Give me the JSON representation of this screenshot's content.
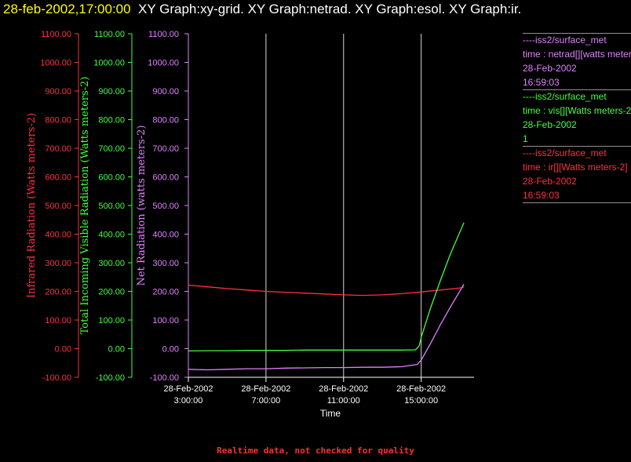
{
  "header": {
    "timestamp": "28-feb-2002,17:00:00",
    "graphs": "XY Graph:xy-grid.  XY Graph:netrad.  XY Graph:esol.  XY Graph:ir."
  },
  "footer_note": "Realtime data, not checked for quality",
  "legend": [
    {
      "source": "----iss2/surface_met",
      "var": "time : netrad[][watts meters-2]",
      "date": "28-Feb-2002",
      "time": "16:59:03",
      "color": "#e080ff"
    },
    {
      "source": "----iss2/surface_met",
      "var": "time : vis[][Watts meters-2]",
      "date": "28-Feb-2002",
      "time": "1",
      "color": "#40ff40"
    },
    {
      "source": "----iss2/surface_met",
      "var": "time : ir[][Watts meters-2]",
      "date": "28-Feb-2002",
      "time": "16:59:03",
      "color": "#ff3040"
    }
  ],
  "chart_data": {
    "type": "line",
    "xlabel": "Time",
    "x_ticks": [
      {
        "date": "28-Feb-2002",
        "time": "3:00:00",
        "hour": 3
      },
      {
        "date": "28-Feb-2002",
        "time": "7:00:00",
        "hour": 7
      },
      {
        "date": "28-Feb-2002",
        "time": "11:00:00",
        "hour": 11
      },
      {
        "date": "28-Feb-2002",
        "time": "15:00:00",
        "hour": 15
      }
    ],
    "xlim_hours": [
      3,
      17.4
    ],
    "ylim": [
      -100,
      1100
    ],
    "y_ticks": [
      "-100.00",
      "0.00",
      "100.00",
      "200.00",
      "300.00",
      "400.00",
      "500.00",
      "600.00",
      "700.00",
      "800.00",
      "900.00",
      "1000.00",
      "1100.00"
    ],
    "vertical_grid_hours": [
      7,
      11,
      15
    ],
    "axes": [
      {
        "label": "Infrared Radiation (Watts meters-2)",
        "color": "#ff3040"
      },
      {
        "label": "Total Incoming Visible Radiation (Watts meters-2)",
        "color": "#40ff40"
      },
      {
        "label": "Net Radiation (watts meters-2)",
        "color": "#e080ff"
      }
    ],
    "series": [
      {
        "name": "ir",
        "color": "#ff3040",
        "points": [
          [
            3,
            222
          ],
          [
            4,
            216
          ],
          [
            5,
            210
          ],
          [
            6,
            205
          ],
          [
            7,
            200
          ],
          [
            8,
            197
          ],
          [
            9,
            194
          ],
          [
            10,
            191
          ],
          [
            11,
            188
          ],
          [
            12,
            186
          ],
          [
            13,
            188
          ],
          [
            14,
            192
          ],
          [
            15,
            198
          ],
          [
            16,
            205
          ],
          [
            17,
            212
          ],
          [
            17.2,
            215
          ]
        ]
      },
      {
        "name": "vis",
        "color": "#40ff40",
        "points": [
          [
            3,
            -8
          ],
          [
            4,
            -7
          ],
          [
            5,
            -7
          ],
          [
            6,
            -6
          ],
          [
            7,
            -6
          ],
          [
            8,
            -6
          ],
          [
            9,
            -5
          ],
          [
            10,
            -5
          ],
          [
            11,
            -5
          ],
          [
            12,
            -5
          ],
          [
            13,
            -5
          ],
          [
            14,
            -5
          ],
          [
            14.7,
            -4
          ],
          [
            14.9,
            10
          ],
          [
            15.0,
            40
          ],
          [
            15.5,
            145
          ],
          [
            16,
            240
          ],
          [
            16.5,
            330
          ],
          [
            17.2,
            440
          ]
        ]
      },
      {
        "name": "netrad",
        "color": "#e080ff",
        "points": [
          [
            3,
            -72
          ],
          [
            4,
            -74
          ],
          [
            5,
            -72
          ],
          [
            6,
            -70
          ],
          [
            7,
            -70
          ],
          [
            8,
            -68
          ],
          [
            9,
            -67
          ],
          [
            10,
            -66
          ],
          [
            11,
            -66
          ],
          [
            12,
            -65
          ],
          [
            13,
            -65
          ],
          [
            14,
            -63
          ],
          [
            14.8,
            -55
          ],
          [
            15.0,
            -40
          ],
          [
            15.5,
            20
          ],
          [
            16,
            85
          ],
          [
            16.5,
            145
          ],
          [
            17.2,
            225
          ]
        ]
      }
    ]
  }
}
